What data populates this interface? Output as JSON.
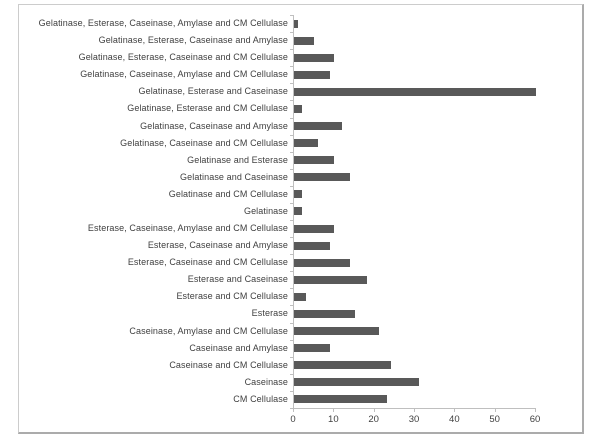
{
  "chart_data": {
    "type": "bar",
    "orientation": "horizontal",
    "title": "",
    "xlabel": "",
    "ylabel": "",
    "grid": false,
    "legend": false,
    "xlim": [
      0,
      60
    ],
    "x_ticks": [
      0,
      10,
      20,
      30,
      40,
      50,
      60
    ],
    "bar_color": "#595959",
    "axis_color": "#bfbfbf",
    "text_color": "#404040",
    "categories": [
      "Gelatinase, Esterase, Caseinase, Amylase and CM Cellulase",
      "Gelatinase, Esterase, Caseinase and Amylase",
      "Gelatinase, Esterase, Caseinase and CM Cellulase",
      "Gelatinase, Caseinase, Amylase and CM Cellulase",
      "Gelatinase, Esterase and Caseinase",
      "Gelatinase, Esterase and CM Cellulase",
      "Gelatinase, Caseinase and Amylase",
      "Gelatinase, Caseinase and CM Cellulase",
      "Gelatinase and Esterase",
      "Gelatinase and Caseinase",
      "Gelatinase and CM Cellulase",
      "Gelatinase",
      "Esterase, Caseinase, Amylase and CM Cellulase",
      "Esterase, Caseinase and Amylase",
      "Esterase, Caseinase and CM Cellulase",
      "Esterase and Caseinase",
      "Esterase and CM Cellulase",
      "Esterase",
      "Caseinase, Amylase and CM Cellulase",
      "Caseinase and Amylase",
      "Caseinase and CM Cellulase",
      "Caseinase",
      "CM Cellulase"
    ],
    "values": [
      1,
      5,
      10,
      9,
      60,
      2,
      12,
      6,
      10,
      14,
      2,
      2,
      10,
      9,
      14,
      18,
      3,
      15,
      21,
      9,
      24,
      31,
      23
    ]
  }
}
